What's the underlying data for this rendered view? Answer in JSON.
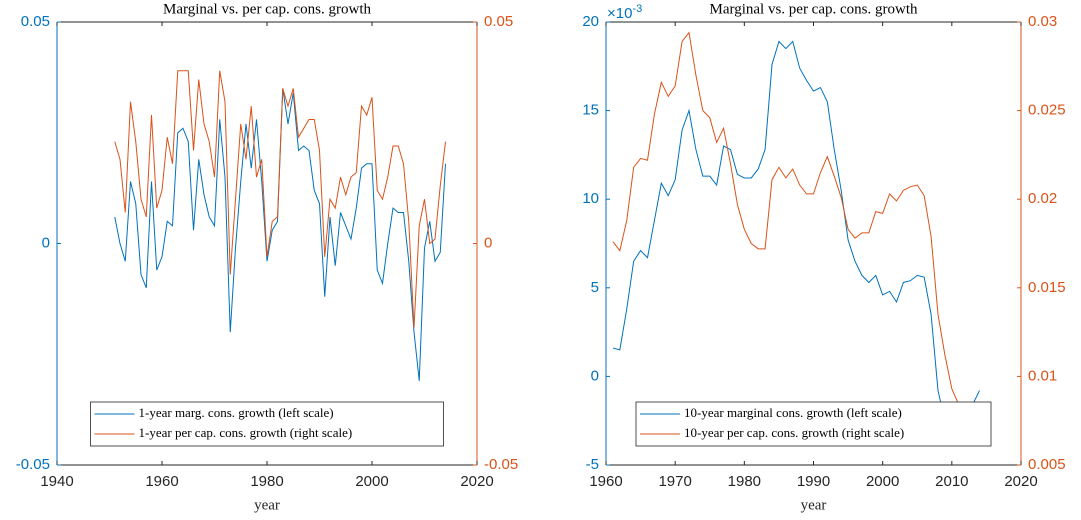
{
  "chart_data": [
    {
      "type": "line",
      "title": "Marginal vs. per cap. cons. growth",
      "xlabel": "year",
      "x": [
        1951,
        1952,
        1953,
        1954,
        1955,
        1956,
        1957,
        1958,
        1959,
        1960,
        1961,
        1962,
        1963,
        1964,
        1965,
        1966,
        1967,
        1968,
        1969,
        1970,
        1971,
        1972,
        1973,
        1974,
        1975,
        1976,
        1977,
        1978,
        1979,
        1980,
        1981,
        1982,
        1983,
        1984,
        1985,
        1986,
        1987,
        1988,
        1989,
        1990,
        1991,
        1992,
        1993,
        1994,
        1995,
        1996,
        1997,
        1998,
        1999,
        2000,
        2001,
        2002,
        2003,
        2004,
        2005,
        2006,
        2007,
        2008,
        2009,
        2010,
        2011,
        2012,
        2013,
        2014
      ],
      "xlim": [
        1940,
        2020
      ],
      "xticks": [
        1940,
        1960,
        1980,
        2000,
        2020
      ],
      "ylim": [
        -0.05,
        0.05
      ],
      "yticks": [
        -0.05,
        0,
        0.05
      ],
      "y2lim": [
        -0.05,
        0.05
      ],
      "y2ticks": [
        -0.05,
        0,
        0.05
      ],
      "legend": "lower center",
      "series": [
        {
          "name": "1-year marg. cons. growth (left scale)",
          "color": "#0072bd",
          "axis": "y",
          "values": [
            0.006,
            0.0,
            -0.004,
            0.014,
            0.009,
            -0.007,
            -0.01,
            0.014,
            -0.006,
            -0.003,
            0.005,
            0.004,
            0.025,
            0.026,
            0.023,
            0.003,
            0.019,
            0.011,
            0.006,
            0.004,
            0.028,
            0.015,
            -0.02,
            -0.001,
            0.014,
            0.027,
            0.017,
            0.028,
            0.014,
            -0.004,
            0.003,
            0.005,
            0.035,
            0.027,
            0.034,
            0.021,
            0.022,
            0.021,
            0.012,
            0.009,
            -0.012,
            0.006,
            -0.005,
            0.007,
            0.004,
            0.001,
            0.008,
            0.017,
            0.018,
            0.018,
            -0.006,
            -0.009,
            0.0,
            0.008,
            0.007,
            0.007,
            -0.004,
            -0.02,
            -0.031,
            -0.001,
            0.005,
            -0.004,
            -0.002,
            0.018
          ]
        },
        {
          "name": "1-year per cap. cons. growth (right scale)",
          "color": "#d95319",
          "axis": "y2",
          "values": [
            0.023,
            0.019,
            0.007,
            0.032,
            0.023,
            0.01,
            0.006,
            0.029,
            0.008,
            0.012,
            0.024,
            0.018,
            0.039,
            0.039,
            0.039,
            0.021,
            0.037,
            0.027,
            0.023,
            0.015,
            0.039,
            0.032,
            -0.007,
            0.01,
            0.027,
            0.019,
            0.031,
            0.015,
            0.019,
            -0.003,
            0.005,
            0.006,
            0.035,
            0.031,
            0.035,
            0.024,
            0.026,
            0.028,
            0.028,
            0.021,
            -0.003,
            0.01,
            0.008,
            0.015,
            0.011,
            0.015,
            0.016,
            0.031,
            0.029,
            0.033,
            0.012,
            0.01,
            0.015,
            0.022,
            0.022,
            0.018,
            0.005,
            -0.019,
            0.004,
            0.01,
            0.0,
            0.001,
            0.013,
            0.023
          ]
        }
      ]
    },
    {
      "type": "line",
      "title": "Marginal vs. per cap. cons. growth",
      "xlabel": "year",
      "y_multiplier": {
        "base": "×10",
        "exponent": "-3"
      },
      "x": [
        1961,
        1962,
        1963,
        1964,
        1965,
        1966,
        1967,
        1968,
        1969,
        1970,
        1971,
        1972,
        1973,
        1974,
        1975,
        1976,
        1977,
        1978,
        1979,
        1980,
        1981,
        1982,
        1983,
        1984,
        1985,
        1986,
        1987,
        1988,
        1989,
        1990,
        1991,
        1992,
        1993,
        1994,
        1995,
        1996,
        1997,
        1998,
        1999,
        2000,
        2001,
        2002,
        2003,
        2004,
        2005,
        2006,
        2007,
        2008,
        2009,
        2010,
        2011,
        2012,
        2013,
        2014
      ],
      "xlim": [
        1960,
        2020
      ],
      "xticks": [
        1960,
        1970,
        1980,
        1990,
        2000,
        2010,
        2020
      ],
      "ylim": [
        -5,
        20
      ],
      "yticks": [
        -5,
        0,
        5,
        10,
        15,
        20
      ],
      "y2lim": [
        0.005,
        0.03
      ],
      "y2ticks": [
        0.005,
        0.01,
        0.015,
        0.02,
        0.025,
        0.03
      ],
      "legend": "lower center",
      "series": [
        {
          "name": "10-year marginal cons. growth (left scale)",
          "color": "#0072bd",
          "axis": "y",
          "values": [
            1.6,
            1.5,
            3.8,
            6.5,
            7.1,
            6.7,
            8.8,
            10.9,
            10.2,
            11.1,
            13.9,
            15.0,
            12.8,
            11.3,
            11.3,
            10.8,
            13.0,
            12.8,
            11.4,
            11.2,
            11.2,
            11.7,
            12.8,
            17.6,
            18.9,
            18.5,
            18.9,
            17.4,
            16.7,
            16.1,
            16.3,
            15.5,
            12.8,
            10.5,
            7.7,
            6.5,
            5.7,
            5.3,
            5.7,
            4.6,
            4.8,
            4.2,
            5.3,
            5.4,
            5.7,
            5.6,
            3.5,
            -0.8,
            -2.5,
            -3.3,
            -3.1,
            -2.5,
            -1.6,
            -0.8
          ]
        },
        {
          "name": "10-year per cap. cons. growth (right scale)",
          "color": "#d95319",
          "axis": "y2",
          "values": [
            0.0176,
            0.0171,
            0.0188,
            0.0218,
            0.0223,
            0.0222,
            0.0248,
            0.0266,
            0.0258,
            0.0264,
            0.0289,
            0.0294,
            0.027,
            0.025,
            0.0246,
            0.0232,
            0.024,
            0.022,
            0.0197,
            0.0183,
            0.0175,
            0.0172,
            0.0172,
            0.0211,
            0.0218,
            0.0212,
            0.0217,
            0.0208,
            0.0203,
            0.0203,
            0.0215,
            0.0224,
            0.0213,
            0.0201,
            0.0183,
            0.0178,
            0.0181,
            0.0181,
            0.0193,
            0.0192,
            0.0203,
            0.0199,
            0.0205,
            0.0207,
            0.0208,
            0.0202,
            0.0179,
            0.0135,
            0.0112,
            0.0093,
            0.0084,
            0.0079,
            0.0075,
            0.0077
          ]
        }
      ]
    }
  ]
}
